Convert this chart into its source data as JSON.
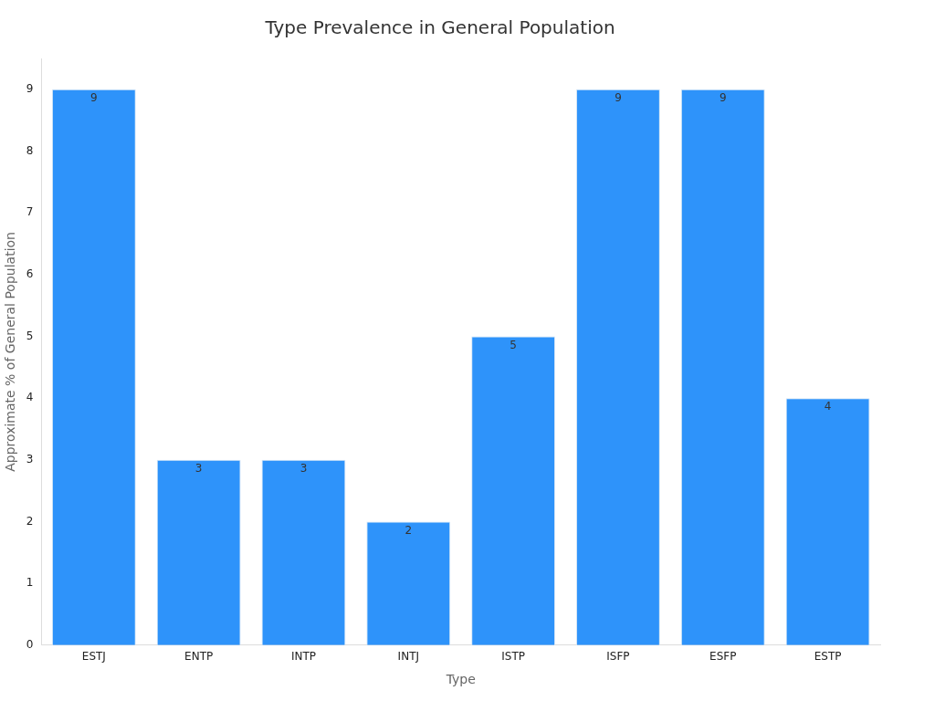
{
  "chart_data": {
    "type": "bar",
    "title": "Type Prevalence in General Population",
    "xlabel": "Type",
    "ylabel": "Approximate % of General Population",
    "categories": [
      "ESTJ",
      "ENTP",
      "INTP",
      "INTJ",
      "ISTP",
      "ISFP",
      "ESFP",
      "ESTP"
    ],
    "values": [
      9,
      3,
      3,
      2,
      5,
      9,
      9,
      4
    ],
    "color": "#2e93fa",
    "ylim": [
      0,
      9.5
    ],
    "yticks": [
      0,
      1,
      2,
      3,
      4,
      5,
      6,
      7,
      8,
      9
    ],
    "grid": false,
    "legend": false,
    "data_labels": true
  }
}
